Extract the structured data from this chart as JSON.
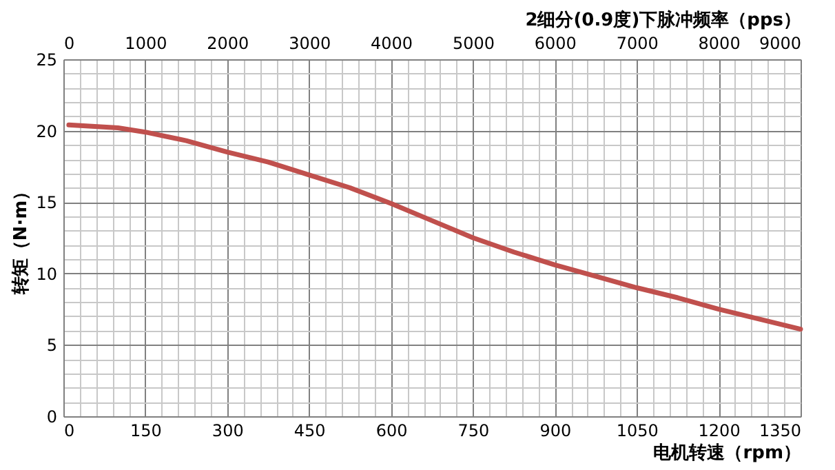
{
  "chart_data": {
    "type": "line",
    "xlabel": "电机转速（rpm）",
    "ylabel": "转矩（N·m）",
    "x2label": "2细分(0.9度)下脉冲频率（pps）",
    "x": [
      10,
      100,
      150,
      225,
      300,
      375,
      450,
      525,
      600,
      675,
      750,
      825,
      900,
      975,
      1050,
      1125,
      1200,
      1275,
      1350
    ],
    "series": [
      {
        "color": "#c0504d",
        "values": [
          20.4,
          20.2,
          19.9,
          19.3,
          18.5,
          17.8,
          16.9,
          16.0,
          14.9,
          13.7,
          12.5,
          11.5,
          10.6,
          9.8,
          9.0,
          8.3,
          7.5,
          6.8,
          6.1
        ]
      }
    ],
    "xlim": [
      0,
      1350
    ],
    "xticks": [
      0,
      {
        "value": 30,
        "label": null
      },
      {
        "value": 60,
        "label": null
      },
      {
        "value": 90,
        "label": null
      },
      {
        "value": 120,
        "label": null
      },
      150,
      {
        "value": 180,
        "label": null
      },
      {
        "value": 210,
        "label": null
      },
      {
        "value": 240,
        "label": null
      },
      {
        "value": 270,
        "label": null
      },
      300,
      {
        "value": 330,
        "label": null
      },
      {
        "value": 360,
        "label": null
      },
      {
        "value": 390,
        "label": null
      },
      {
        "value": 420,
        "label": null
      },
      450,
      {
        "value": 480,
        "label": null
      },
      {
        "value": 510,
        "label": null
      },
      {
        "value": 540,
        "label": null
      },
      {
        "value": 570,
        "label": null
      },
      600,
      {
        "value": 630,
        "label": null
      },
      {
        "value": 660,
        "label": null
      },
      {
        "value": 690,
        "label": null
      },
      {
        "value": 720,
        "label": null
      },
      750,
      {
        "value": 780,
        "label": null
      },
      {
        "value": 810,
        "label": null
      },
      {
        "value": 840,
        "label": null
      },
      {
        "value": 870,
        "label": null
      },
      900,
      {
        "value": 930,
        "label": null
      },
      {
        "value": 960,
        "label": null
      },
      {
        "value": 990,
        "label": null
      },
      {
        "value": 1020,
        "label": null
      },
      1050,
      {
        "value": 1080,
        "label": null
      },
      {
        "value": 1110,
        "label": null
      },
      {
        "value": 1140,
        "label": null
      },
      {
        "value": 1170,
        "label": null
      },
      1200,
      {
        "value": 1230,
        "label": null
      },
      {
        "value": 1260,
        "label": null
      },
      {
        "value": 1290,
        "label": null
      },
      {
        "value": 1320,
        "label": null
      },
      1350
    ],
    "x2lim": [
      0,
      9000
    ],
    "x2ticks": [
      0,
      1000,
      2000,
      3000,
      4000,
      5000,
      6000,
      7000,
      8000,
      9000
    ],
    "ylim": [
      0,
      25
    ],
    "yticks": [
      0,
      {
        "value": 1,
        "label": null
      },
      {
        "value": 2,
        "label": null
      },
      {
        "value": 3,
        "label": null
      },
      {
        "value": 4,
        "label": null
      },
      5,
      {
        "value": 6,
        "label": null
      },
      {
        "value": 7,
        "label": null
      },
      {
        "value": 8,
        "label": null
      },
      {
        "value": 9,
        "label": null
      },
      10,
      {
        "value": 11,
        "label": null
      },
      {
        "value": 12,
        "label": null
      },
      {
        "value": 13,
        "label": null
      },
      {
        "value": 14,
        "label": null
      },
      15,
      {
        "value": 16,
        "label": null
      },
      {
        "value": 17,
        "label": null
      },
      {
        "value": 18,
        "label": null
      },
      {
        "value": 19,
        "label": null
      },
      20,
      {
        "value": 21,
        "label": null
      },
      {
        "value": 22,
        "label": null
      },
      {
        "value": 23,
        "label": null
      },
      {
        "value": 24,
        "label": null
      },
      25
    ],
    "grid": true,
    "legend": false,
    "marker": "none",
    "line_style": "solid"
  }
}
